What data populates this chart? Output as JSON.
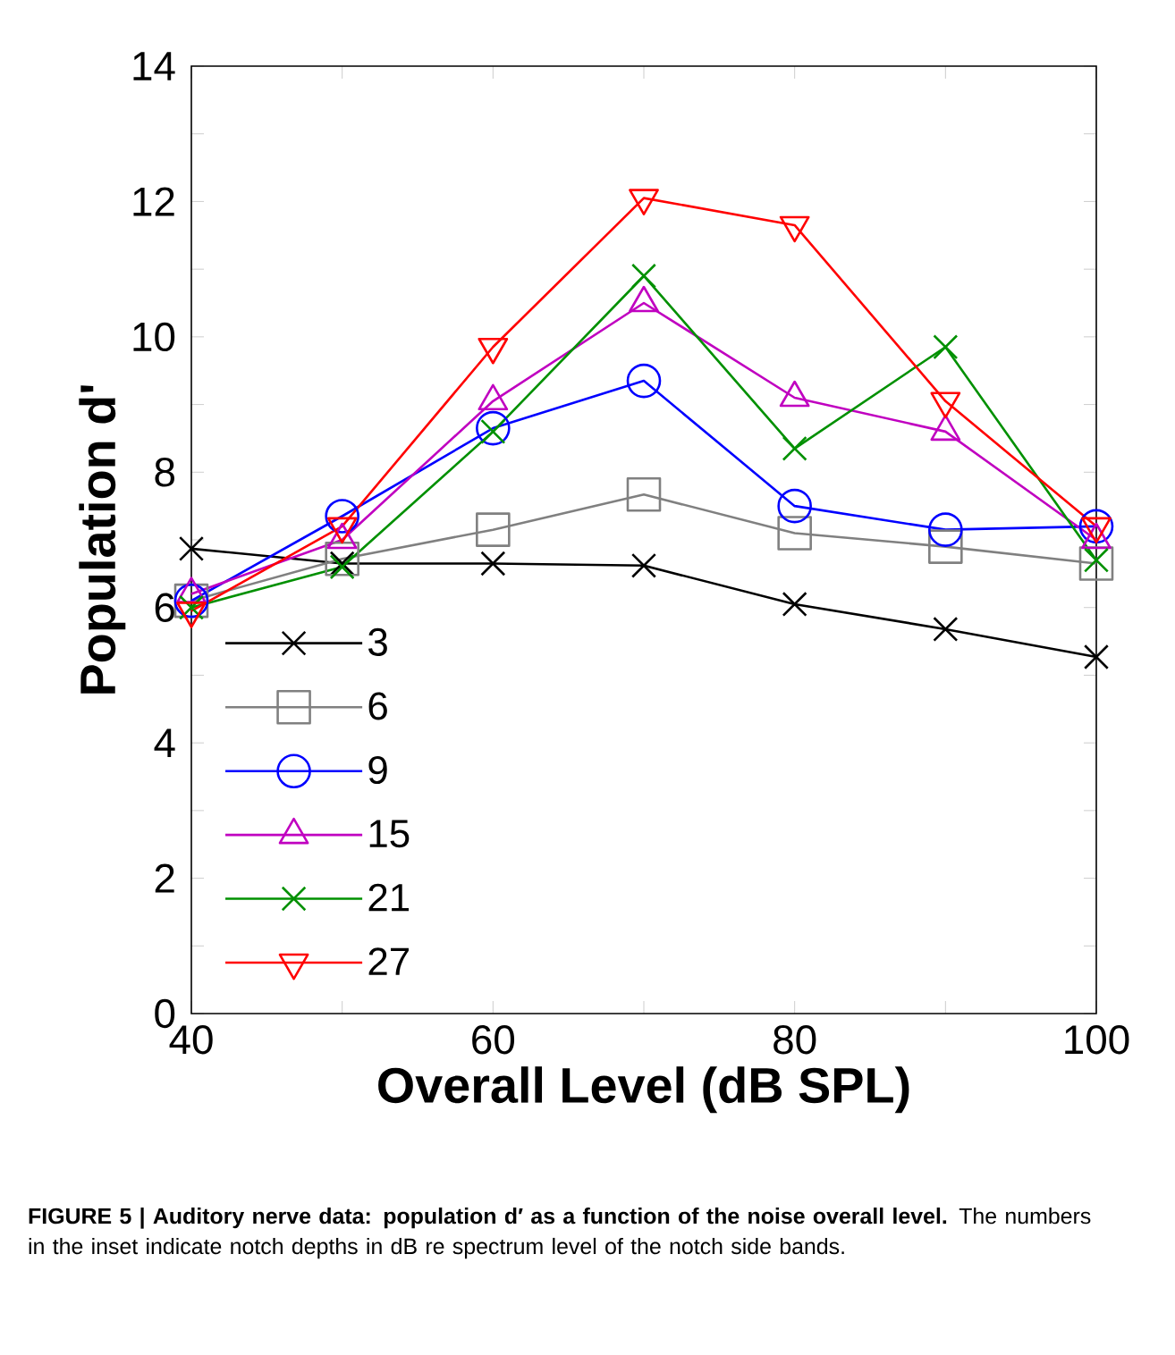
{
  "chart_data": {
    "type": "line",
    "xlabel": "Overall Level (dB SPL)",
    "ylabel": "Population d'",
    "x": [
      40,
      50,
      60,
      70,
      80,
      90,
      100
    ],
    "series": [
      {
        "name": "3",
        "color": "#000000",
        "marker": "cross",
        "values": [
          6.87,
          6.65,
          6.65,
          6.62,
          6.05,
          5.68,
          5.27
        ]
      },
      {
        "name": "6",
        "color": "#808080",
        "marker": "square",
        "values": [
          6.1,
          6.72,
          7.15,
          7.67,
          7.1,
          6.9,
          6.65
        ]
      },
      {
        "name": "9",
        "color": "#0000ff",
        "marker": "circle",
        "values": [
          6.1,
          7.35,
          8.65,
          9.35,
          7.5,
          7.15,
          7.2
        ]
      },
      {
        "name": "15",
        "color": "#c000c0",
        "marker": "triangle",
        "values": [
          6.2,
          7.0,
          9.05,
          10.5,
          9.1,
          8.6,
          7.0
        ]
      },
      {
        "name": "21",
        "color": "#009000",
        "marker": "cross",
        "values": [
          6.0,
          6.6,
          8.6,
          10.9,
          8.35,
          9.85,
          6.7
        ]
      },
      {
        "name": "27",
        "color": "#ff0000",
        "marker": "triangle_down",
        "values": [
          5.95,
          7.2,
          9.85,
          12.05,
          11.65,
          9.05,
          7.2
        ]
      }
    ],
    "xlim": [
      40,
      100
    ],
    "ylim": [
      0,
      14
    ],
    "xticks": [
      40,
      {
        "value": 50,
        "label": null
      },
      60,
      {
        "value": 70,
        "label": null
      },
      80,
      {
        "value": 90,
        "label": null
      },
      100
    ],
    "yticks": [
      0,
      {
        "value": 1,
        "label": null
      },
      2,
      {
        "value": 3,
        "label": null
      },
      4,
      {
        "value": 5,
        "label": null
      },
      6,
      {
        "value": 7,
        "label": null
      },
      8,
      {
        "value": 9,
        "label": null
      },
      10,
      {
        "value": 11,
        "label": null
      },
      12,
      {
        "value": 13,
        "label": null
      },
      14
    ],
    "legend": "bottom left",
    "line_style": "solid",
    "grid": false,
    "annotations": [
      "**FIGURE 5 | Auditory nerve data: population d′ as a function of the noise overall level.** The numbers in the inset indicate notch depths in dB re spectrum level of the notch side bands."
    ]
  }
}
